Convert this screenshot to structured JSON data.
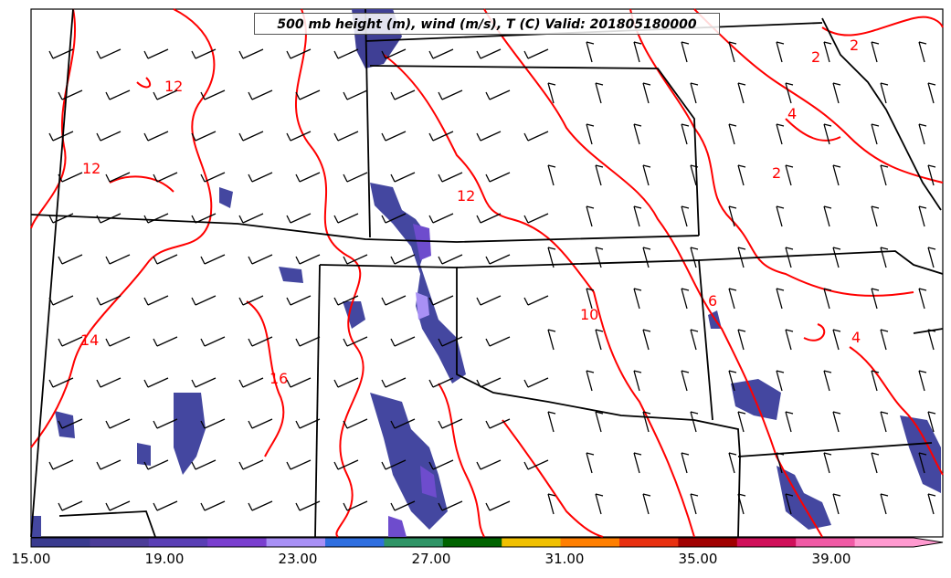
{
  "title": "500 mb height (m), wind (m/s), T (C) Valid: 201805180000",
  "colorbar": {
    "ticks": [
      "15.00",
      "19.00",
      "23.00",
      "27.00",
      "31.00",
      "35.00",
      "39.00"
    ],
    "colors": [
      "#3a3b8f",
      "#4b3c98",
      "#5a3fb5",
      "#7a3fcf",
      "#a890f5",
      "#2f6fe0",
      "#2f9466",
      "#006400",
      "#f0c000",
      "#ff7f00",
      "#e83010",
      "#a00000",
      "#d0105a",
      "#f05aa5",
      "#ff9ad0"
    ]
  },
  "contours": {
    "color": "#ff0000",
    "labels": [
      "2",
      "2",
      "4",
      "2",
      "12",
      "12",
      "12",
      "10",
      "6",
      "14",
      "16",
      "4"
    ]
  },
  "barb_color": "#000000",
  "boundary_color": "#000000"
}
